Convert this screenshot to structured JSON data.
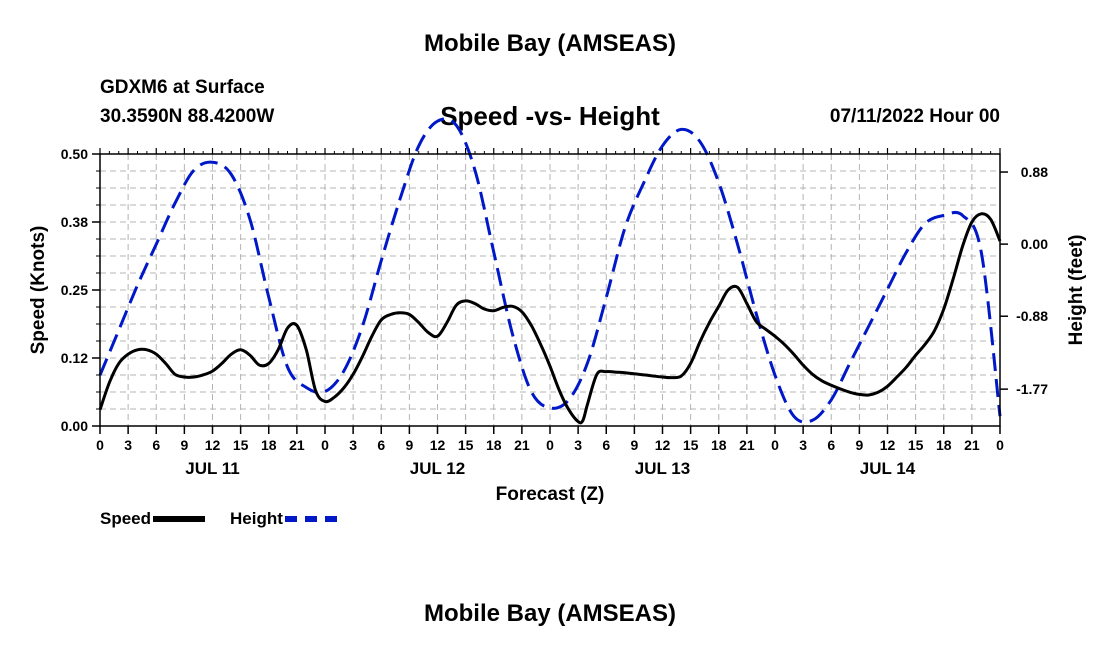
{
  "header": {
    "title": "Mobile Bay (AMSEAS)",
    "station": "GDXM6 at Surface",
    "coords": "30.3590N  88.4200W",
    "subtitle": "Speed -vs- Height",
    "datetime": "07/11/2022 Hour 00"
  },
  "footer": {
    "title": "Mobile Bay (AMSEAS)"
  },
  "legend": {
    "speed": "Speed",
    "height": "Height"
  },
  "chart_data": {
    "type": "line",
    "title": "Speed -vs- Height",
    "xlabel": "Forecast (Z)",
    "ylabel": "Speed (Knots)",
    "y2label": "Height (feet)",
    "xlim": [
      0,
      96
    ],
    "ylim": [
      0,
      0.5
    ],
    "y2lim": [
      -2.22,
      1.1
    ],
    "x_tick_labels": [
      "0",
      "3",
      "6",
      "9",
      "12",
      "15",
      "18",
      "21",
      "0",
      "3",
      "6",
      "9",
      "12",
      "15",
      "18",
      "21",
      "0",
      "3",
      "6",
      "9",
      "12",
      "15",
      "18",
      "21",
      "0",
      "3",
      "6",
      "9",
      "12",
      "15",
      "18",
      "21",
      "0"
    ],
    "day_labels": [
      {
        "hour": 12,
        "label": "JUL 11"
      },
      {
        "hour": 36,
        "label": "JUL 12"
      },
      {
        "hour": 60,
        "label": "JUL 13"
      },
      {
        "hour": 84,
        "label": "JUL 14"
      }
    ],
    "y_ticks": [
      {
        "value": 0.0,
        "label": "0.00"
      },
      {
        "value": 0.125,
        "label": "0.12"
      },
      {
        "value": 0.25,
        "label": "0.25"
      },
      {
        "value": 0.375,
        "label": "0.38"
      },
      {
        "value": 0.5,
        "label": "0.50"
      }
    ],
    "y2_ticks": [
      {
        "value": 0.88,
        "label": "0.88"
      },
      {
        "value": 0.0,
        "label": "0.00"
      },
      {
        "value": -0.88,
        "label": "-0.88"
      },
      {
        "value": -1.77,
        "label": "-1.77"
      }
    ],
    "series": [
      {
        "name": "Speed",
        "color": "#000000",
        "axis": "left",
        "style": "solid",
        "x": [
          0,
          1,
          2,
          3,
          4,
          5,
          6,
          7,
          8,
          9,
          10,
          11,
          12,
          13,
          14,
          15,
          16,
          17,
          18,
          19,
          20,
          21,
          22,
          23,
          24,
          25,
          26,
          27,
          28,
          29,
          30,
          31,
          32,
          33,
          34,
          35,
          36,
          37,
          38,
          39,
          40,
          41,
          42,
          43,
          44,
          45,
          46,
          47,
          48,
          49,
          50,
          51,
          51.5,
          52,
          53,
          54,
          55,
          56,
          57,
          58,
          59,
          60,
          61,
          62,
          63,
          64,
          65,
          66,
          67,
          68,
          69,
          70,
          71,
          72,
          73,
          74,
          75,
          76,
          77,
          78,
          79,
          80,
          81,
          82,
          83,
          84,
          85,
          86,
          87,
          88,
          89,
          90,
          91,
          92,
          93,
          94,
          95,
          96
        ],
        "values": [
          0.03,
          0.08,
          0.115,
          0.132,
          0.14,
          0.14,
          0.132,
          0.115,
          0.095,
          0.09,
          0.09,
          0.094,
          0.101,
          0.115,
          0.132,
          0.14,
          0.13,
          0.112,
          0.115,
          0.14,
          0.18,
          0.185,
          0.14,
          0.065,
          0.045,
          0.053,
          0.07,
          0.095,
          0.128,
          0.165,
          0.195,
          0.205,
          0.208,
          0.205,
          0.19,
          0.172,
          0.165,
          0.19,
          0.222,
          0.23,
          0.225,
          0.215,
          0.212,
          0.218,
          0.22,
          0.21,
          0.185,
          0.15,
          0.11,
          0.065,
          0.03,
          0.008,
          0.01,
          0.04,
          0.095,
          0.1,
          0.099,
          0.098,
          0.096,
          0.094,
          0.092,
          0.09,
          0.089,
          0.092,
          0.115,
          0.155,
          0.19,
          0.22,
          0.25,
          0.255,
          0.225,
          0.192,
          0.178,
          0.165,
          0.15,
          0.132,
          0.112,
          0.095,
          0.083,
          0.075,
          0.068,
          0.062,
          0.058,
          0.057,
          0.062,
          0.073,
          0.09,
          0.108,
          0.13,
          0.15,
          0.175,
          0.215,
          0.27,
          0.33,
          0.375,
          0.39,
          0.38,
          0.34
        ]
      },
      {
        "name": "Height",
        "color": "#0018c8",
        "axis": "right",
        "style": "dashed",
        "x": [
          0,
          2,
          4,
          6,
          8,
          10,
          12,
          14,
          16,
          18,
          20,
          22,
          24,
          26,
          28,
          30,
          32,
          34,
          36,
          38,
          40,
          42,
          44,
          46,
          48,
          50,
          52,
          54,
          56,
          58,
          60,
          62,
          64,
          66,
          68,
          70,
          72,
          74,
          76,
          78,
          80,
          82,
          84,
          86,
          88,
          90,
          92,
          94,
          96
        ],
        "values": [
          -1.6,
          -1.05,
          -0.5,
          0.0,
          0.5,
          0.9,
          1.0,
          0.85,
          0.3,
          -0.65,
          -1.5,
          -1.75,
          -1.8,
          -1.55,
          -1.0,
          -0.2,
          0.55,
          1.2,
          1.5,
          1.45,
          0.9,
          -0.1,
          -1.1,
          -1.8,
          -2.0,
          -1.9,
          -1.45,
          -0.65,
          0.2,
          0.75,
          1.2,
          1.4,
          1.25,
          0.75,
          0.0,
          -0.85,
          -1.6,
          -2.1,
          -2.15,
          -1.9,
          -1.45,
          -1.0,
          -0.55,
          -0.1,
          0.25,
          0.35,
          0.35,
          -0.1,
          -2.1
        ]
      }
    ]
  }
}
